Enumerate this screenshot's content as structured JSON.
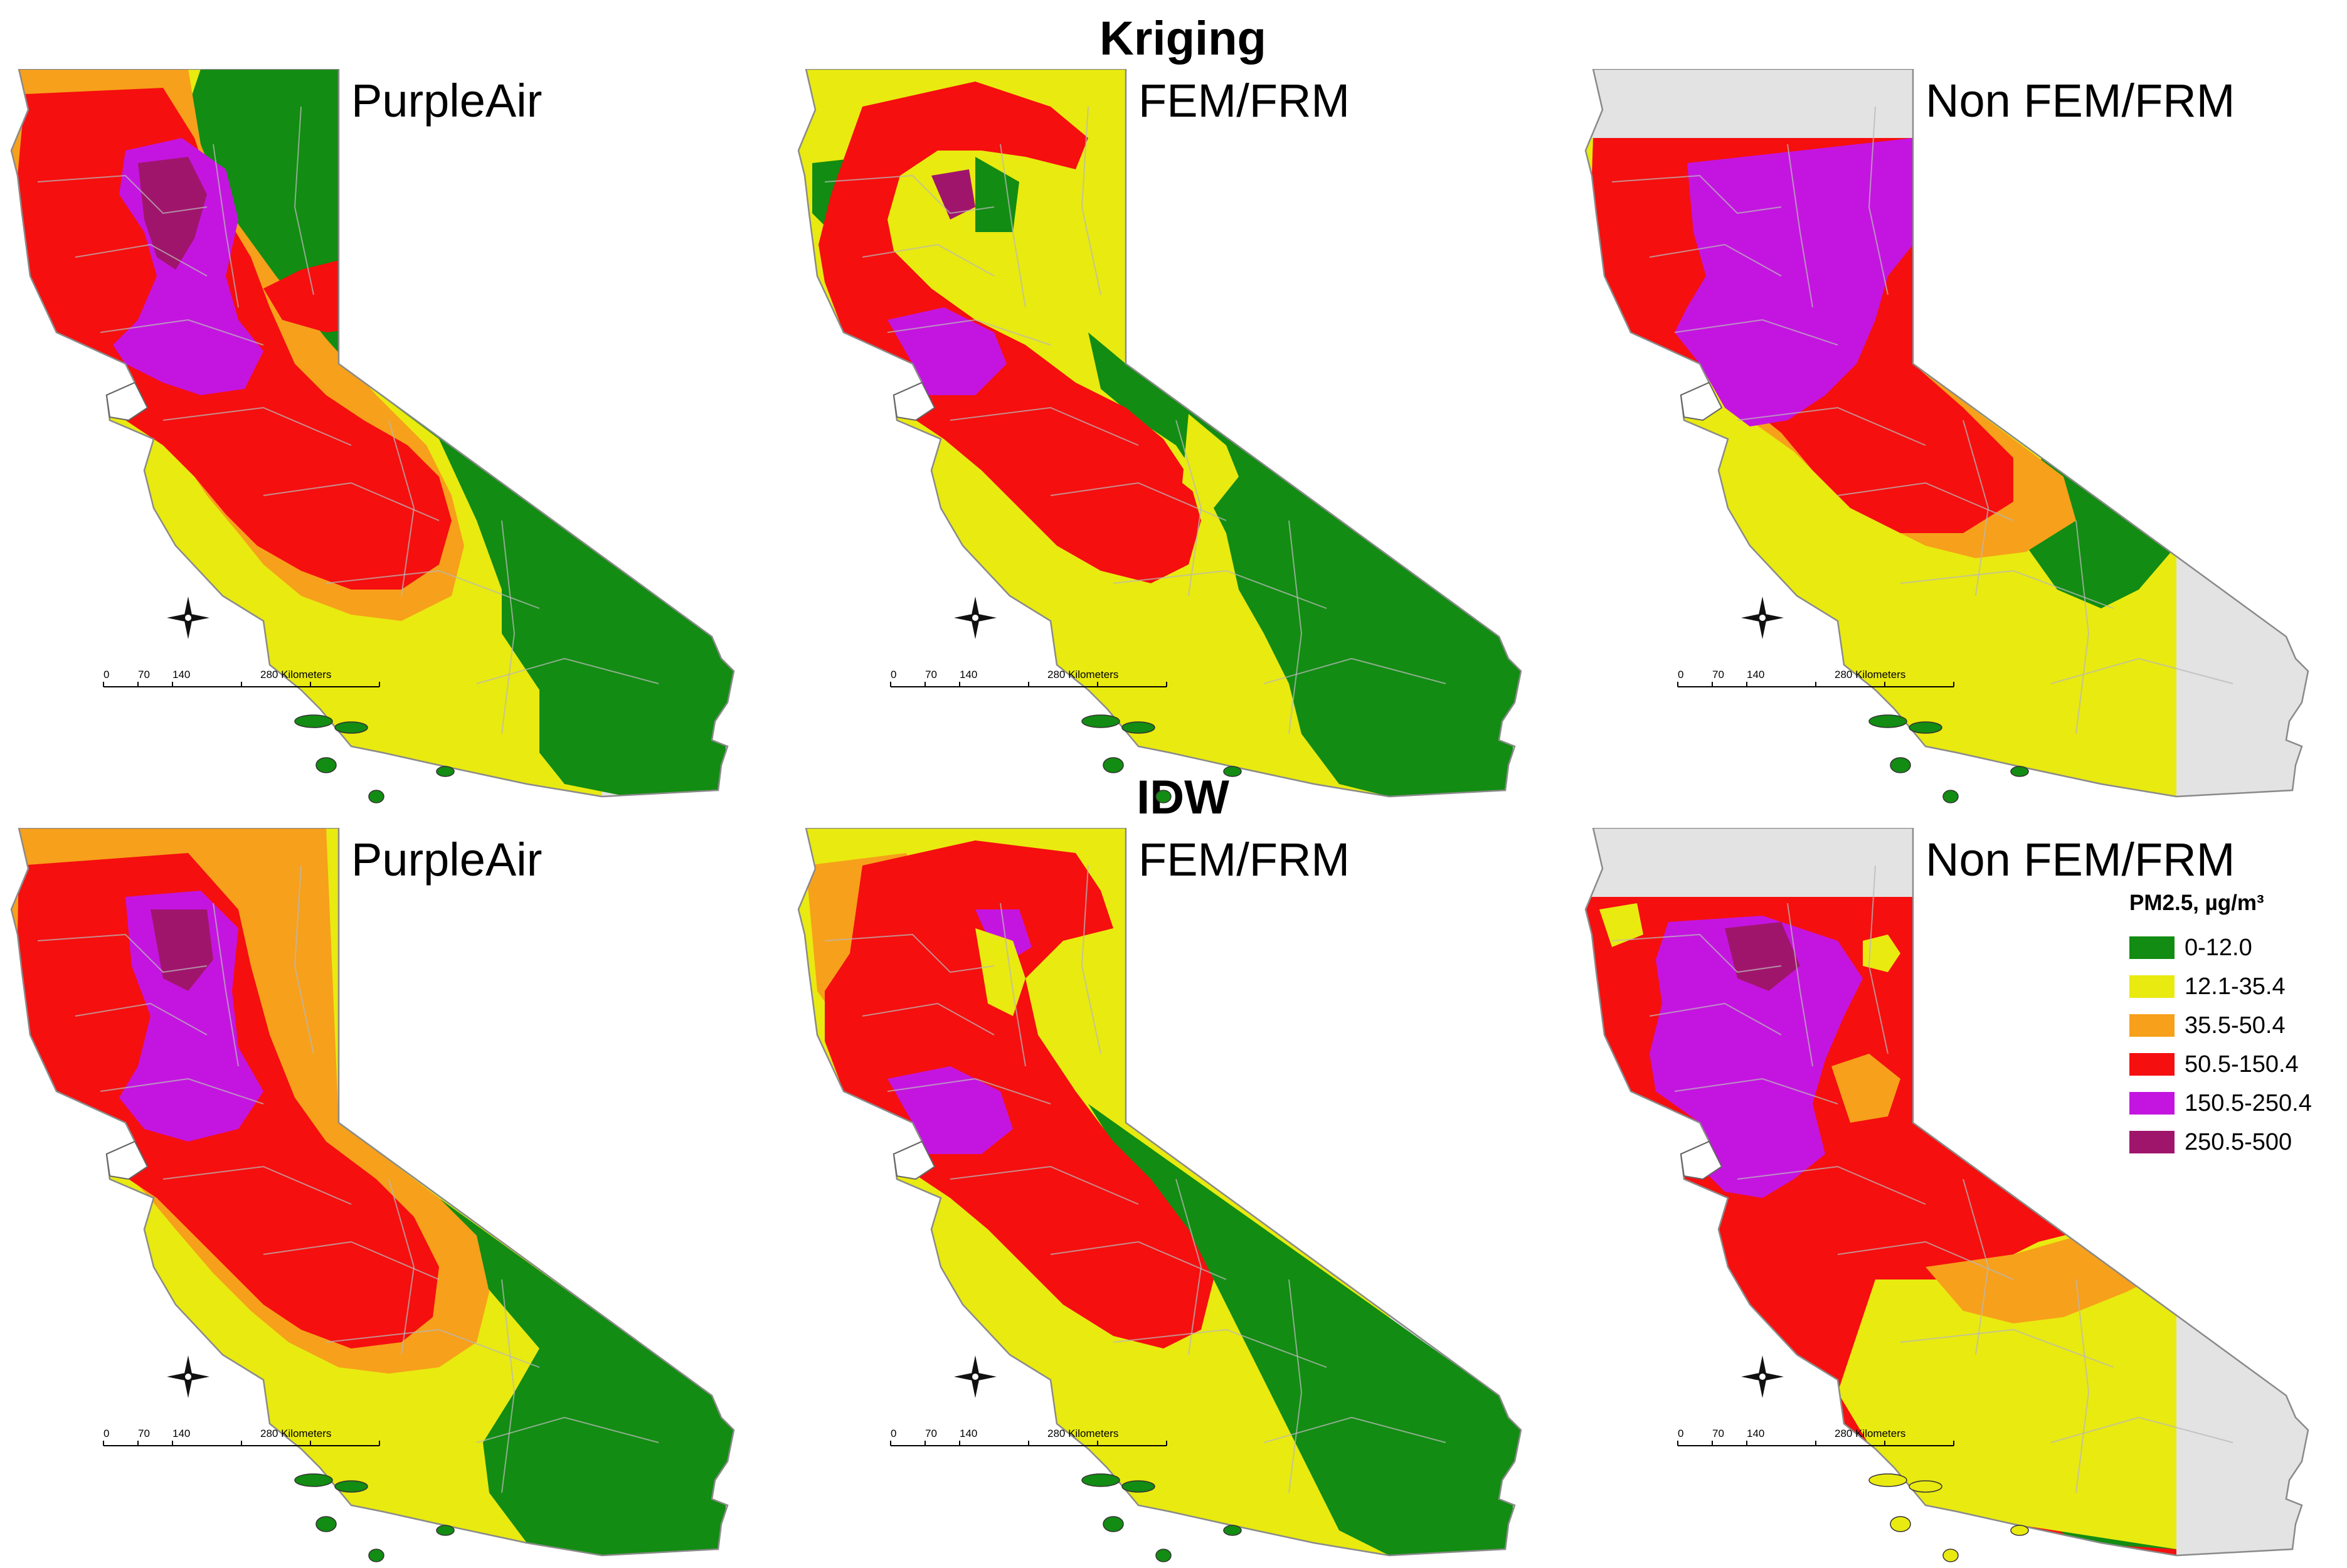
{
  "sections": {
    "kriging": "Kriging",
    "idw": "IDW"
  },
  "panels": {
    "k1": "PurpleAir",
    "k2": "FEM/FRM",
    "k3": "Non FEM/FRM",
    "i1": "PurpleAir",
    "i2": "FEM/FRM",
    "i3": "Non FEM/FRM"
  },
  "scale_bar": {
    "labels": [
      "0",
      "70",
      "140",
      "280 Kilometers"
    ]
  },
  "legend": {
    "title": "PM2.5, µg/m³",
    "items": [
      {
        "label": "0-12.0",
        "color": "#128C12"
      },
      {
        "label": "12.1-35.4",
        "color": "#E9EA10"
      },
      {
        "label": "35.5-50.4",
        "color": "#F7A01B"
      },
      {
        "label": "50.5-150.4",
        "color": "#F50F0F"
      },
      {
        "label": "150.5-250.4",
        "color": "#C415E0"
      },
      {
        "label": "250.5-500",
        "color": "#A0156C"
      }
    ]
  },
  "colors": {
    "nodata": "#E3E3E3",
    "green": "#128C12",
    "yellow": "#E9EA10",
    "orange": "#F7A01B",
    "red": "#F50F0F",
    "purple": "#C415E0",
    "maroon": "#A0156C"
  }
}
